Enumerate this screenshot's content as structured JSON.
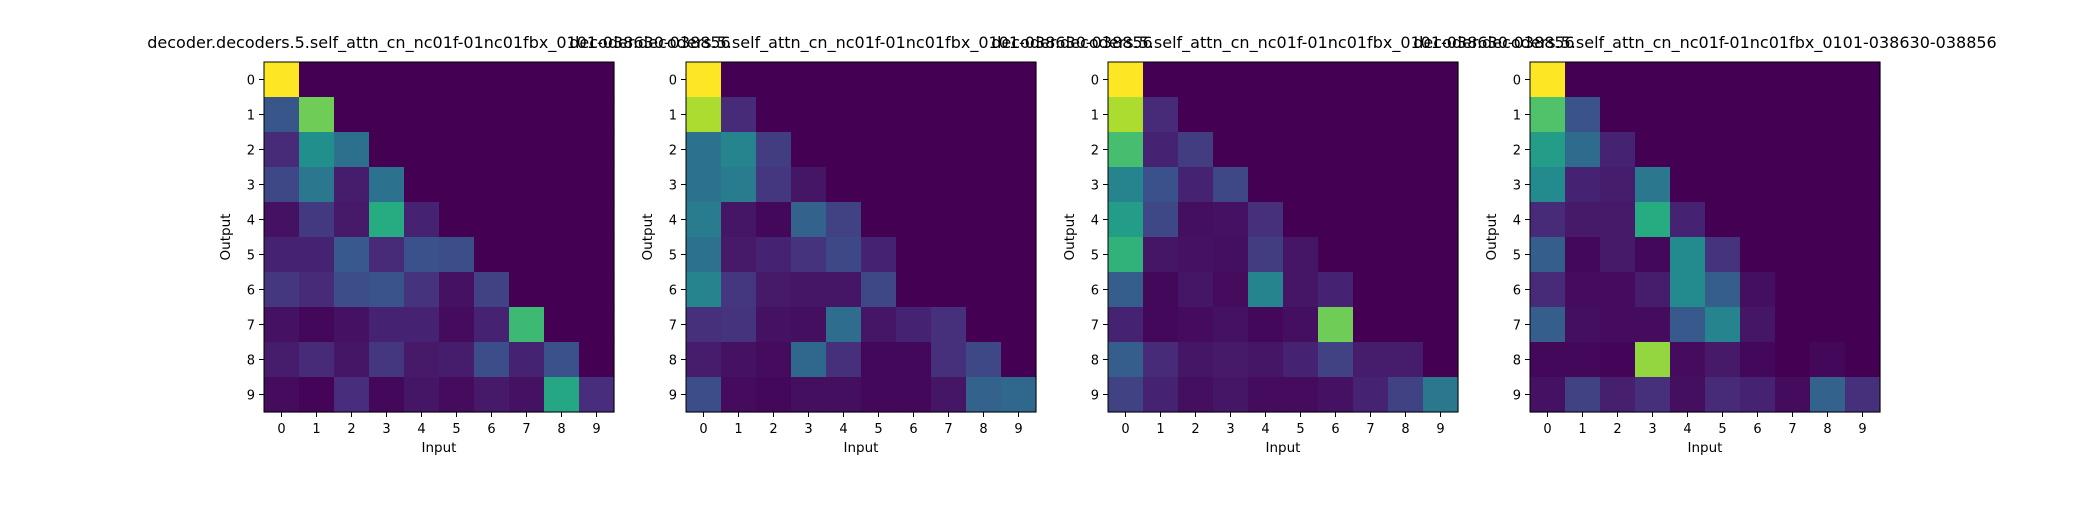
{
  "chart_data": [
    {
      "type": "heatmap",
      "title": "decoder.decoders.5.self_attn_cn_nc01f-01nc01fbx_0101-038630-038856",
      "xlabel": "Input",
      "ylabel": "Output",
      "x_ticks": [
        "0",
        "1",
        "2",
        "3",
        "4",
        "5",
        "6",
        "7",
        "8",
        "9"
      ],
      "y_ticks": [
        "0",
        "1",
        "2",
        "3",
        "4",
        "5",
        "6",
        "7",
        "8",
        "9"
      ],
      "colormap": "viridis",
      "vmin": 0,
      "vmax": 1,
      "values": [
        [
          1.0,
          0,
          0,
          0,
          0,
          0,
          0,
          0,
          0,
          0
        ],
        [
          0.27,
          0.78,
          0,
          0,
          0,
          0,
          0,
          0,
          0,
          0
        ],
        [
          0.12,
          0.5,
          0.37,
          0,
          0,
          0,
          0,
          0,
          0,
          0
        ],
        [
          0.22,
          0.4,
          0.08,
          0.38,
          0,
          0,
          0,
          0,
          0,
          0
        ],
        [
          0.05,
          0.17,
          0.07,
          0.62,
          0.1,
          0,
          0,
          0,
          0,
          0
        ],
        [
          0.1,
          0.1,
          0.28,
          0.12,
          0.25,
          0.24,
          0,
          0,
          0,
          0
        ],
        [
          0.16,
          0.12,
          0.24,
          0.26,
          0.15,
          0.05,
          0.2,
          0,
          0,
          0
        ],
        [
          0.05,
          0.02,
          0.05,
          0.1,
          0.1,
          0.03,
          0.1,
          0.68,
          0,
          0
        ],
        [
          0.08,
          0.12,
          0.06,
          0.16,
          0.07,
          0.08,
          0.24,
          0.1,
          0.25,
          0
        ],
        [
          0.03,
          0.01,
          0.13,
          0.02,
          0.06,
          0.03,
          0.07,
          0.05,
          0.6,
          0.13
        ]
      ]
    },
    {
      "type": "heatmap",
      "title": "decoder.decoders.5.self_attn_cn_nc01f-01nc01fbx_0101-038630-038856",
      "xlabel": "Input",
      "ylabel": "Output",
      "x_ticks": [
        "0",
        "1",
        "2",
        "3",
        "4",
        "5",
        "6",
        "7",
        "8",
        "9"
      ],
      "y_ticks": [
        "0",
        "1",
        "2",
        "3",
        "4",
        "5",
        "6",
        "7",
        "8",
        "9"
      ],
      "colormap": "viridis",
      "vmin": 0,
      "vmax": 1,
      "values": [
        [
          1.0,
          0,
          0,
          0,
          0,
          0,
          0,
          0,
          0,
          0
        ],
        [
          0.88,
          0.12,
          0,
          0,
          0,
          0,
          0,
          0,
          0,
          0
        ],
        [
          0.38,
          0.45,
          0.18,
          0,
          0,
          0,
          0,
          0,
          0,
          0
        ],
        [
          0.38,
          0.42,
          0.16,
          0.06,
          0,
          0,
          0,
          0,
          0,
          0
        ],
        [
          0.42,
          0.06,
          0.02,
          0.32,
          0.2,
          0,
          0,
          0,
          0,
          0
        ],
        [
          0.38,
          0.07,
          0.1,
          0.15,
          0.22,
          0.1,
          0,
          0,
          0,
          0
        ],
        [
          0.45,
          0.16,
          0.07,
          0.06,
          0.06,
          0.22,
          0,
          0,
          0,
          0
        ],
        [
          0.14,
          0.15,
          0.05,
          0.04,
          0.36,
          0.06,
          0.1,
          0.14,
          0,
          0
        ],
        [
          0.08,
          0.05,
          0.03,
          0.34,
          0.14,
          0.02,
          0.02,
          0.14,
          0.22,
          0
        ],
        [
          0.24,
          0.03,
          0.02,
          0.04,
          0.04,
          0.02,
          0.02,
          0.06,
          0.32,
          0.34
        ]
      ]
    },
    {
      "type": "heatmap",
      "title": "decoder.decoders.5.self_attn_cn_nc01f-01nc01fbx_0101-038630-038856",
      "xlabel": "Input",
      "ylabel": "Output",
      "x_ticks": [
        "0",
        "1",
        "2",
        "3",
        "4",
        "5",
        "6",
        "7",
        "8",
        "9"
      ],
      "y_ticks": [
        "0",
        "1",
        "2",
        "3",
        "4",
        "5",
        "6",
        "7",
        "8",
        "9"
      ],
      "colormap": "viridis",
      "vmin": 0,
      "vmax": 1,
      "values": [
        [
          1.0,
          0,
          0,
          0,
          0,
          0,
          0,
          0,
          0,
          0
        ],
        [
          0.88,
          0.12,
          0,
          0,
          0,
          0,
          0,
          0,
          0,
          0
        ],
        [
          0.7,
          0.1,
          0.18,
          0,
          0,
          0,
          0,
          0,
          0,
          0
        ],
        [
          0.45,
          0.25,
          0.1,
          0.22,
          0,
          0,
          0,
          0,
          0,
          0
        ],
        [
          0.55,
          0.22,
          0.04,
          0.05,
          0.14,
          0,
          0,
          0,
          0,
          0
        ],
        [
          0.65,
          0.06,
          0.05,
          0.04,
          0.18,
          0.06,
          0,
          0,
          0,
          0
        ],
        [
          0.3,
          0.02,
          0.06,
          0.03,
          0.45,
          0.06,
          0.1,
          0,
          0,
          0
        ],
        [
          0.1,
          0.02,
          0.03,
          0.05,
          0.02,
          0.04,
          0.78,
          0,
          0,
          0
        ],
        [
          0.3,
          0.12,
          0.06,
          0.07,
          0.06,
          0.1,
          0.2,
          0.08,
          0.08,
          0
        ],
        [
          0.2,
          0.1,
          0.04,
          0.06,
          0.03,
          0.03,
          0.05,
          0.1,
          0.2,
          0.4
        ]
      ]
    },
    {
      "type": "heatmap",
      "title": "decoder.decoders.5.self_attn_cn_nc01f-01nc01fbx_0101-038630-038856",
      "xlabel": "Input",
      "ylabel": "Output",
      "x_ticks": [
        "0",
        "1",
        "2",
        "3",
        "4",
        "5",
        "6",
        "7",
        "8",
        "9"
      ],
      "y_ticks": [
        "0",
        "1",
        "2",
        "3",
        "4",
        "5",
        "6",
        "7",
        "8",
        "9"
      ],
      "colormap": "viridis",
      "vmin": 0,
      "vmax": 1,
      "values": [
        [
          1.0,
          0,
          0,
          0,
          0,
          0,
          0,
          0,
          0,
          0
        ],
        [
          0.72,
          0.26,
          0,
          0,
          0,
          0,
          0,
          0,
          0,
          0
        ],
        [
          0.55,
          0.35,
          0.1,
          0,
          0,
          0,
          0,
          0,
          0,
          0
        ],
        [
          0.48,
          0.1,
          0.08,
          0.4,
          0,
          0,
          0,
          0,
          0,
          0
        ],
        [
          0.12,
          0.07,
          0.07,
          0.62,
          0.1,
          0,
          0,
          0,
          0,
          0
        ],
        [
          0.3,
          0.02,
          0.07,
          0.02,
          0.48,
          0.15,
          0,
          0,
          0,
          0
        ],
        [
          0.12,
          0.03,
          0.03,
          0.08,
          0.48,
          0.3,
          0.04,
          0,
          0,
          0
        ],
        [
          0.3,
          0.04,
          0.03,
          0.03,
          0.28,
          0.45,
          0.06,
          0,
          0,
          0
        ],
        [
          0.02,
          0.02,
          0.01,
          0.84,
          0.03,
          0.07,
          0.02,
          0,
          0.02,
          0
        ],
        [
          0.05,
          0.2,
          0.09,
          0.14,
          0.04,
          0.12,
          0.1,
          0.03,
          0.32,
          0.14
        ]
      ]
    }
  ]
}
